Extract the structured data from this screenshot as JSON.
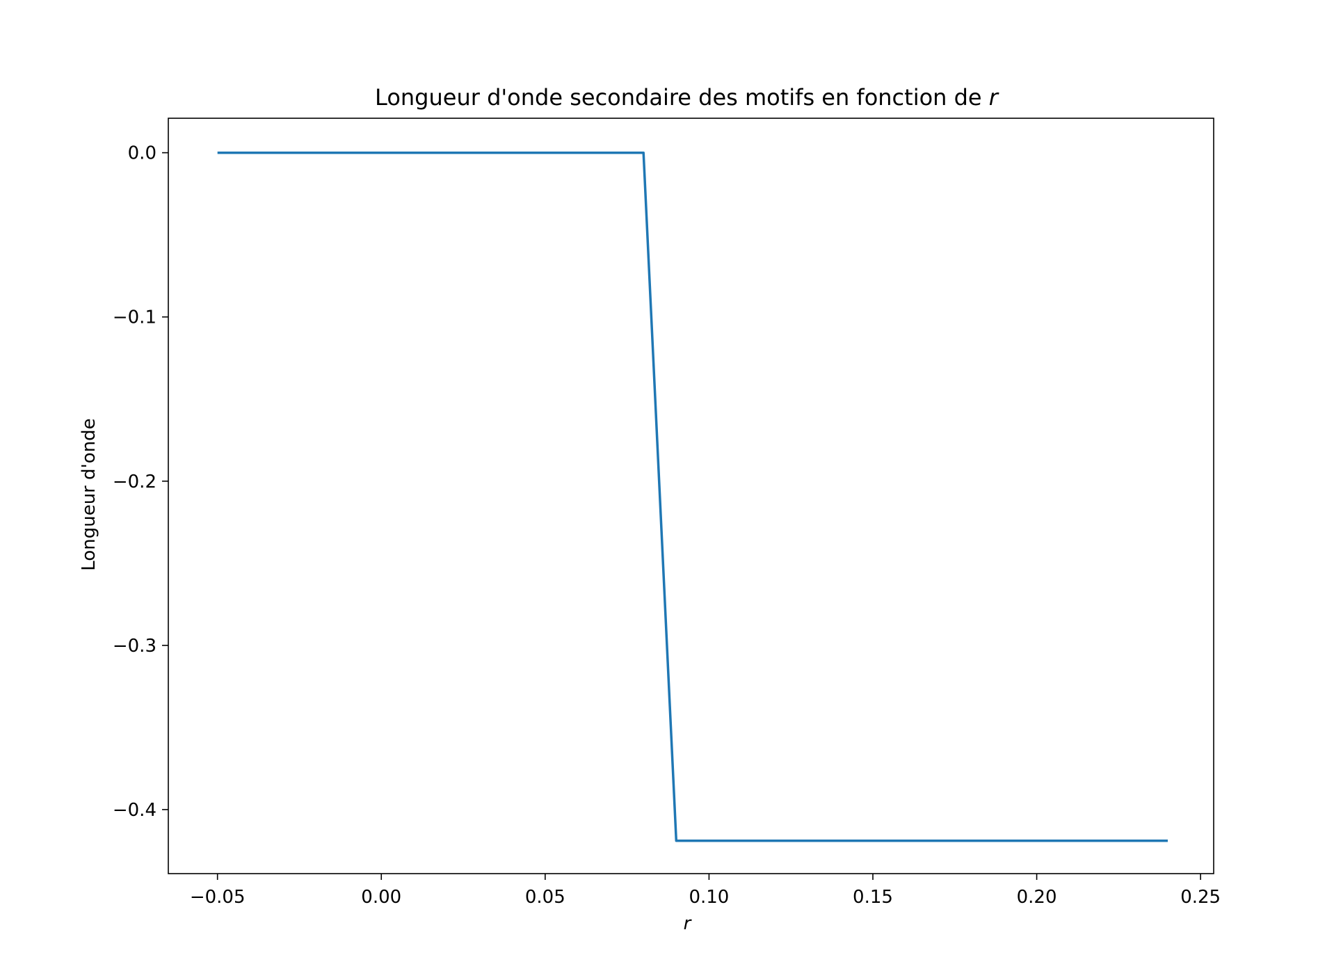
{
  "chart_data": {
    "type": "line",
    "title_main": "Longueur d'onde secondaire des motifs en fonction de ",
    "title_var": "r",
    "xlabel": "r",
    "ylabel": "Longueur d'onde",
    "xlim": [
      -0.065,
      0.254
    ],
    "ylim": [
      -0.439,
      0.021
    ],
    "grid": false,
    "x_ticks": [
      -0.05,
      0.0,
      0.05,
      0.1,
      0.15,
      0.2,
      0.25
    ],
    "x_tick_labels": [
      "−0.05",
      "0.00",
      "0.05",
      "0.10",
      "0.15",
      "0.20",
      "0.25"
    ],
    "y_ticks": [
      0.0,
      -0.1,
      -0.2,
      -0.3,
      -0.4
    ],
    "y_tick_labels": [
      "0.0",
      "−0.1",
      "−0.2",
      "−0.3",
      "−0.4"
    ],
    "series": [
      {
        "color": "#1f77b4",
        "x": [
          -0.05,
          0.08,
          0.09,
          0.24
        ],
        "y": [
          0.0,
          0.0,
          -0.419,
          -0.419
        ]
      }
    ]
  }
}
